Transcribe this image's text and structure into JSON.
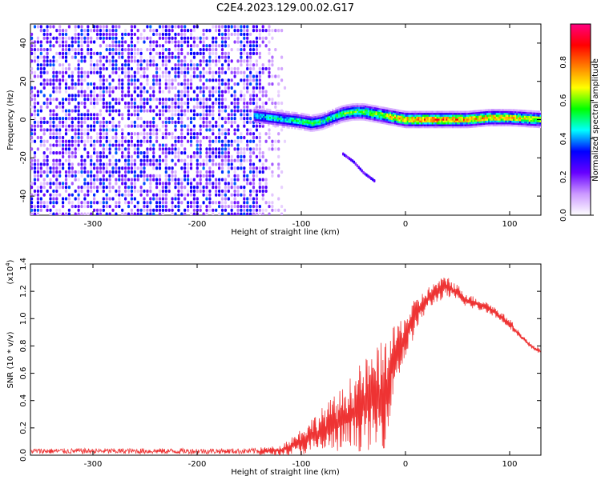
{
  "title": "C2E4.2023.129.00.02.G17",
  "chart_data": [
    {
      "type": "heatmap",
      "xlabel": "Height of straight line (km)",
      "ylabel": "Frequency (Hz)",
      "xlim": [
        -360,
        130
      ],
      "ylim": [
        -50,
        50
      ],
      "x_ticks": [
        -300,
        -200,
        -100,
        0,
        100
      ],
      "x_tick_labels": [
        "-300",
        "-200",
        "-100",
        "0",
        "100"
      ],
      "y_ticks": [
        -40,
        -20,
        0,
        20,
        40
      ],
      "y_tick_labels": [
        "-40",
        "-20",
        "0",
        "20",
        "40"
      ],
      "colorbar": {
        "label": "Normalized spectral amplitude",
        "range": [
          0,
          1
        ],
        "ticks": [
          0.0,
          0.2,
          0.4,
          0.6,
          0.8
        ],
        "tick_labels": [
          "0.0",
          "0.2",
          "0.4",
          "0.6",
          "0.8"
        ],
        "colormap": [
          "#ffffff",
          "#cc99ff",
          "#6600ff",
          "#0000ff",
          "#00ffff",
          "#00ff00",
          "#ffff00",
          "#ff7f00",
          "#ff0000",
          "#ff0080"
        ]
      },
      "noise_region_x": [
        -360,
        -120
      ],
      "signal_track": {
        "x": [
          -145,
          -130,
          -115,
          -100,
          -90,
          -80,
          -70,
          -60,
          -50,
          -40,
          -30,
          -20,
          -10,
          0,
          20,
          40,
          60,
          80,
          100,
          130
        ],
        "y": [
          2,
          1,
          0,
          -1,
          -2,
          -1,
          1,
          3,
          4,
          4,
          3,
          2,
          1,
          0,
          0,
          0,
          0,
          1,
          1,
          0
        ],
        "amp": [
          0.45,
          0.5,
          0.5,
          0.55,
          0.55,
          0.55,
          0.55,
          0.6,
          0.6,
          0.6,
          0.65,
          0.7,
          0.75,
          0.8,
          0.85,
          0.85,
          0.8,
          0.8,
          0.75,
          0.7
        ]
      },
      "tail_track": {
        "x": [
          -60,
          -50,
          -40,
          -30
        ],
        "y": [
          -18,
          -22,
          -28,
          -32
        ]
      }
    },
    {
      "type": "line",
      "xlabel": "Height of straight line (km)",
      "ylabel": "SNR (10 * v/v)",
      "multiplier_label": "(x10",
      "multiplier_exp": "4",
      "xlim": [
        -360,
        130
      ],
      "ylim": [
        0,
        1.4
      ],
      "x_ticks": [
        -300,
        -200,
        -100,
        0,
        100
      ],
      "x_tick_labels": [
        "-300",
        "-200",
        "-100",
        "0",
        "100"
      ],
      "y_ticks": [
        0.0,
        0.2,
        0.4,
        0.6,
        0.8,
        1.0,
        1.2,
        1.4
      ],
      "y_tick_labels": [
        "0.0",
        "0.2",
        "0.4",
        "0.6",
        "0.8",
        "1.0",
        "1.2",
        "1.4"
      ],
      "color": "#ee3333",
      "envelope": {
        "x": [
          -360,
          -150,
          -120,
          -100,
          -80,
          -60,
          -40,
          -20,
          -10,
          0,
          10,
          20,
          30,
          40,
          50,
          60,
          80,
          100,
          110,
          120,
          130
        ],
        "upper": [
          0.05,
          0.05,
          0.07,
          0.2,
          0.35,
          0.5,
          0.7,
          0.85,
          0.95,
          1.05,
          1.15,
          1.22,
          1.28,
          1.32,
          1.25,
          1.18,
          1.12,
          1.0,
          0.9,
          0.82,
          0.78
        ],
        "lower": [
          0.0,
          0.0,
          0.0,
          0.0,
          0.01,
          0.02,
          0.03,
          0.05,
          0.5,
          0.7,
          0.9,
          1.05,
          1.12,
          1.15,
          1.12,
          1.08,
          1.04,
          0.93,
          0.85,
          0.78,
          0.74
        ]
      }
    }
  ]
}
